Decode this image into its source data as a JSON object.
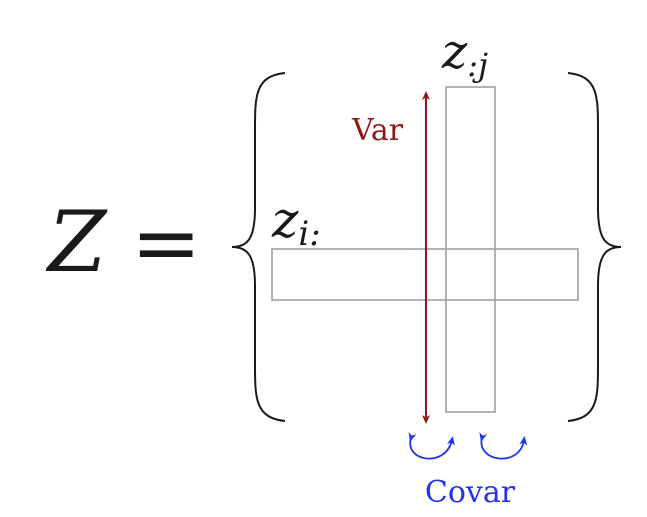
{
  "equation": {
    "lhs_symbol": "Z",
    "equals_sign": "="
  },
  "row_label": {
    "base": "z",
    "subscript": "i:"
  },
  "column_label": {
    "base": "z",
    "subscript": ":j"
  },
  "var_label": "Var",
  "covar_label": "Covar",
  "colors": {
    "var": "#8b1a1a",
    "covar": "#2233ee",
    "box_stroke": "#a0a0a0",
    "ink": "#1a1a1a"
  }
}
